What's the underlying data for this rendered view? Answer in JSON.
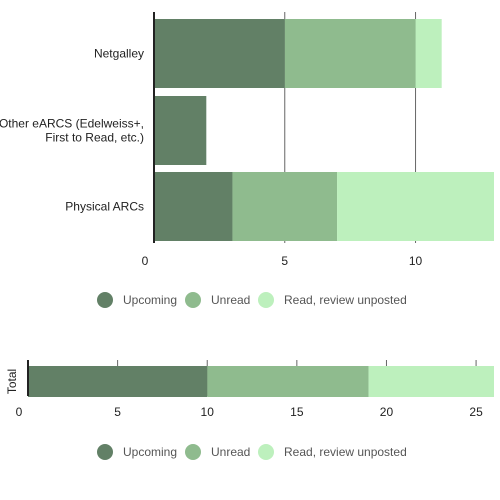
{
  "chart_data": [
    {
      "type": "bar",
      "orientation": "horizontal",
      "stacked": true,
      "categories": [
        "Netgalley",
        "Other eARCS (Edelweiss+,\nFirst to Read, etc.)",
        "Physical ARCs"
      ],
      "series": [
        {
          "name": "Upcoming",
          "color": "#628066",
          "values": [
            5,
            2,
            3
          ]
        },
        {
          "name": "Unread",
          "color": "#8fbb8e",
          "values": [
            5,
            0,
            4
          ]
        },
        {
          "name": "Read, review unposted",
          "color": "#bdf0bd",
          "values": [
            1,
            0,
            6
          ]
        }
      ],
      "x_ticks": [
        0,
        5,
        10
      ],
      "xlim": [
        0,
        13
      ],
      "grid": true,
      "legend": "bottom"
    },
    {
      "type": "bar",
      "orientation": "horizontal",
      "stacked": true,
      "categories": [
        "Total"
      ],
      "series": [
        {
          "name": "Upcoming",
          "color": "#628066",
          "values": [
            10
          ]
        },
        {
          "name": "Unread",
          "color": "#8fbb8e",
          "values": [
            9
          ]
        },
        {
          "name": "Read, review unposted",
          "color": "#bdf0bd",
          "values": [
            7
          ]
        }
      ],
      "x_ticks": [
        0,
        5,
        10,
        15,
        20,
        25
      ],
      "xlim": [
        0,
        26
      ],
      "grid": true,
      "legend": "bottom"
    }
  ]
}
